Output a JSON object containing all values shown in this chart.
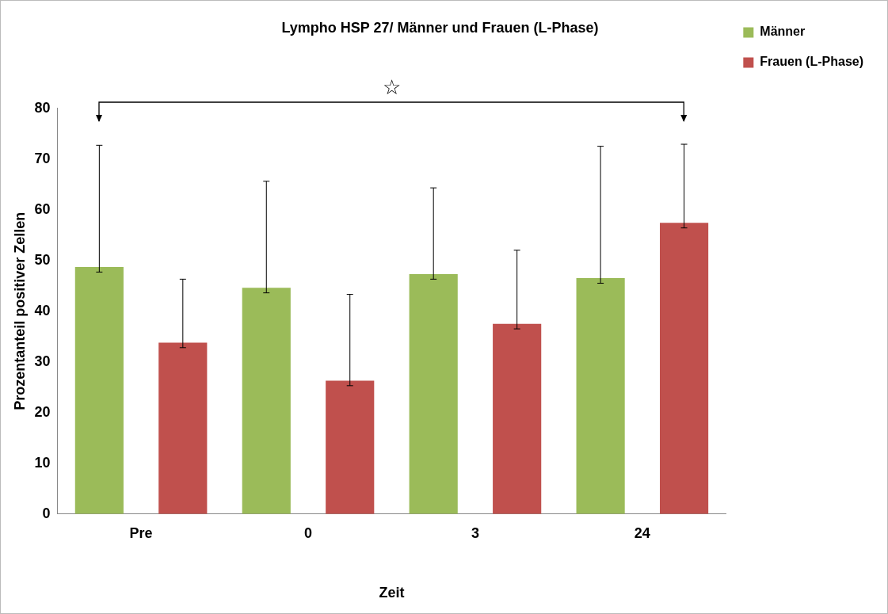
{
  "chart_data": {
    "type": "bar",
    "title": "Lympho HSP 27/ Männer und Frauen (L-Phase)",
    "xlabel": "Zeit",
    "ylabel": "Prozentanteil positiver Zellen",
    "categories": [
      "Pre",
      "0",
      "3",
      "24"
    ],
    "series": [
      {
        "name": "Männer",
        "color": "#9bbb59",
        "values": [
          48.7,
          44.6,
          47.3,
          46.5
        ],
        "errors": [
          [
            47.7,
            72.7
          ],
          [
            43.6,
            65.6
          ],
          [
            46.3,
            64.3
          ],
          [
            45.5,
            72.5
          ]
        ]
      },
      {
        "name": "Frauen (L-Phase)",
        "color": "#c0504d",
        "values": [
          33.8,
          26.3,
          37.5,
          57.4
        ],
        "errors": [
          [
            32.8,
            46.3
          ],
          [
            25.3,
            43.3
          ],
          [
            36.5,
            52
          ],
          [
            56.4,
            72.9
          ]
        ]
      }
    ],
    "ylim": [
      0,
      80
    ],
    "yticks": [
      0,
      10,
      20,
      30,
      40,
      50,
      60,
      70,
      80
    ],
    "grid": false,
    "legend": "top right",
    "annotations": [
      "☆"
    ]
  }
}
